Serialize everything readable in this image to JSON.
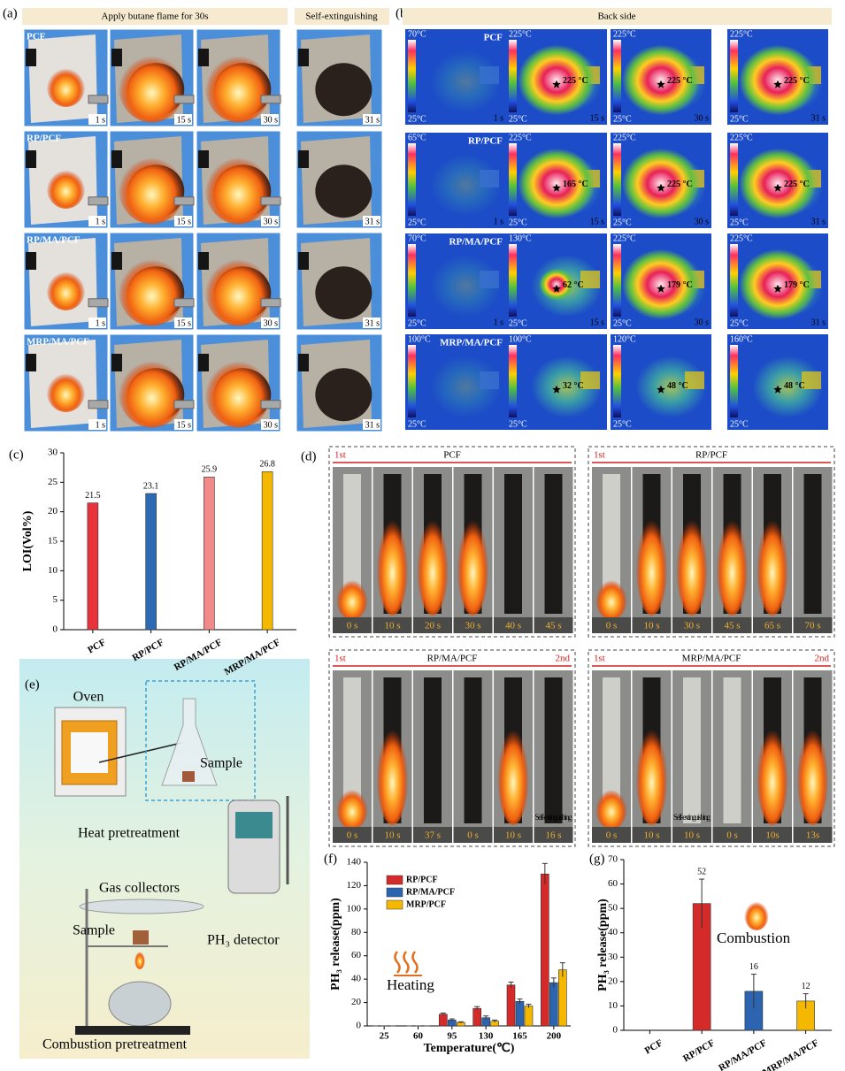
{
  "panel_a": {
    "label": "(a)",
    "header": "Apply butane flame for 30s",
    "header2": "Self-extinguishing",
    "rows": [
      "PCF",
      "RP/PCF",
      "RP/MA/PCF",
      "MRP/MA/PCF"
    ],
    "times": [
      "1 s",
      "15 s",
      "30 s",
      "31 s"
    ]
  },
  "panel_b": {
    "label": "(b)",
    "header": "Back side",
    "scale_min": "25°C",
    "times": [
      "1 s",
      "15 s",
      "30 s",
      "31 s"
    ],
    "rows": [
      {
        "name": "PCF",
        "scale_max": [
          "70°C",
          "225°C",
          "225°C",
          "225°C"
        ],
        "spots": [
          null,
          "225 °C",
          "225 °C",
          "225 °C"
        ]
      },
      {
        "name": "RP/PCF",
        "scale_max": [
          "65°C",
          "225°C",
          "225°C",
          "225°C"
        ],
        "spots": [
          null,
          "165 °C",
          "225 °C",
          "225 °C"
        ]
      },
      {
        "name": "RP/MA/PCF",
        "scale_max": [
          "70°C",
          "130°C",
          "225°C",
          "225°C"
        ],
        "spots": [
          null,
          "62 °C",
          "179 °C",
          "179 °C"
        ]
      },
      {
        "name": "MRP/MA/PCF",
        "scale_max": [
          "100°C",
          "100°C",
          "120°C",
          "160°C"
        ],
        "spots": [
          null,
          "32 °C",
          "48 °C",
          "48 °C"
        ]
      }
    ]
  },
  "panel_d": {
    "label": "(d)",
    "groups": [
      {
        "title": "PCF",
        "first": "1st",
        "times": [
          "0 s",
          "10 s",
          "20 s",
          "30 s",
          "40 s",
          "45 s"
        ]
      },
      {
        "title": "RP/PCF",
        "first": "1st",
        "times": [
          "0 s",
          "10 s",
          "30 s",
          "45 s",
          "65 s",
          "70 s"
        ]
      },
      {
        "title": "RP/MA/PCF",
        "first": "1st",
        "second": "2nd",
        "note": "Self-extinguishing",
        "times": [
          "0 s",
          "10 s",
          "37 s",
          "0 s",
          "10 s",
          "16 s"
        ]
      },
      {
        "title": "MRP/MA/PCF",
        "first": "1st",
        "second": "2nd",
        "note": "Self-extinguishing",
        "times": [
          "0 s",
          "10 s",
          "10 s",
          "0 s",
          "10s",
          "13s"
        ]
      }
    ]
  },
  "panel_e": {
    "label": "(e)",
    "oven": "Oven",
    "sample_top": "Sample",
    "heat": "Heat pretreatment",
    "gas": "Gas collectors",
    "sample_bottom": "Sample",
    "detector": "PH₃ detector",
    "combustion": "Combustion  pretreatment"
  },
  "chart_data": [
    {
      "type": "bar",
      "label": "(c)",
      "ylabel": "LOI(Vol%)",
      "categories": [
        "PCF",
        "RP/PCF",
        "RP/MA/PCF",
        "MRP/MA/PCF"
      ],
      "values": [
        21.5,
        23.1,
        25.9,
        26.8
      ],
      "colors": [
        "#e8323c",
        "#2c6bb4",
        "#f28a8a",
        "#f5b800"
      ],
      "ylim": [
        0,
        30
      ],
      "yticks": [
        0,
        5,
        10,
        15,
        20,
        25,
        30
      ]
    },
    {
      "type": "bar",
      "label": "(f)",
      "ylabel": "PH₃ release(ppm)",
      "xlabel": "Temperature(℃)",
      "annotation": "Heating",
      "categories": [
        "25",
        "60",
        "95",
        "130",
        "165",
        "200"
      ],
      "legend": "upper left",
      "series": [
        {
          "name": "RP/PCF",
          "color": "#d42a2a",
          "values": [
            0,
            0,
            10,
            15,
            35,
            130
          ],
          "errors": [
            0,
            0,
            1,
            1.5,
            2.5,
            9
          ]
        },
        {
          "name": "RP/MA/PCF",
          "color": "#2c64b0",
          "values": [
            0,
            0,
            5,
            7,
            21,
            37
          ],
          "errors": [
            0,
            0,
            1,
            1.5,
            2,
            4
          ]
        },
        {
          "name": "MRP/PCF",
          "color": "#f5b800",
          "values": [
            0,
            0,
            3,
            4,
            17,
            48
          ],
          "errors": [
            0,
            0,
            0.5,
            1,
            1.5,
            6
          ]
        }
      ],
      "ylim": [
        0,
        140
      ],
      "yticks": [
        0,
        20,
        40,
        60,
        80,
        100,
        120,
        140
      ]
    },
    {
      "type": "bar",
      "label": "(g)",
      "ylabel": "PH₃ release(ppm)",
      "annotation": "Combustion",
      "categories": [
        "PCF",
        "RP/PCF",
        "RP/MA/PCF",
        "MRP/MA/PCF"
      ],
      "values": [
        null,
        52,
        16,
        12
      ],
      "errors": [
        null,
        10,
        7,
        3
      ],
      "colors": [
        "#d42a2a",
        "#d42a2a",
        "#2c64b0",
        "#f5b800"
      ],
      "ylim": [
        0,
        70
      ],
      "yticks": [
        0,
        10,
        20,
        30,
        40,
        50,
        60,
        70
      ]
    }
  ]
}
